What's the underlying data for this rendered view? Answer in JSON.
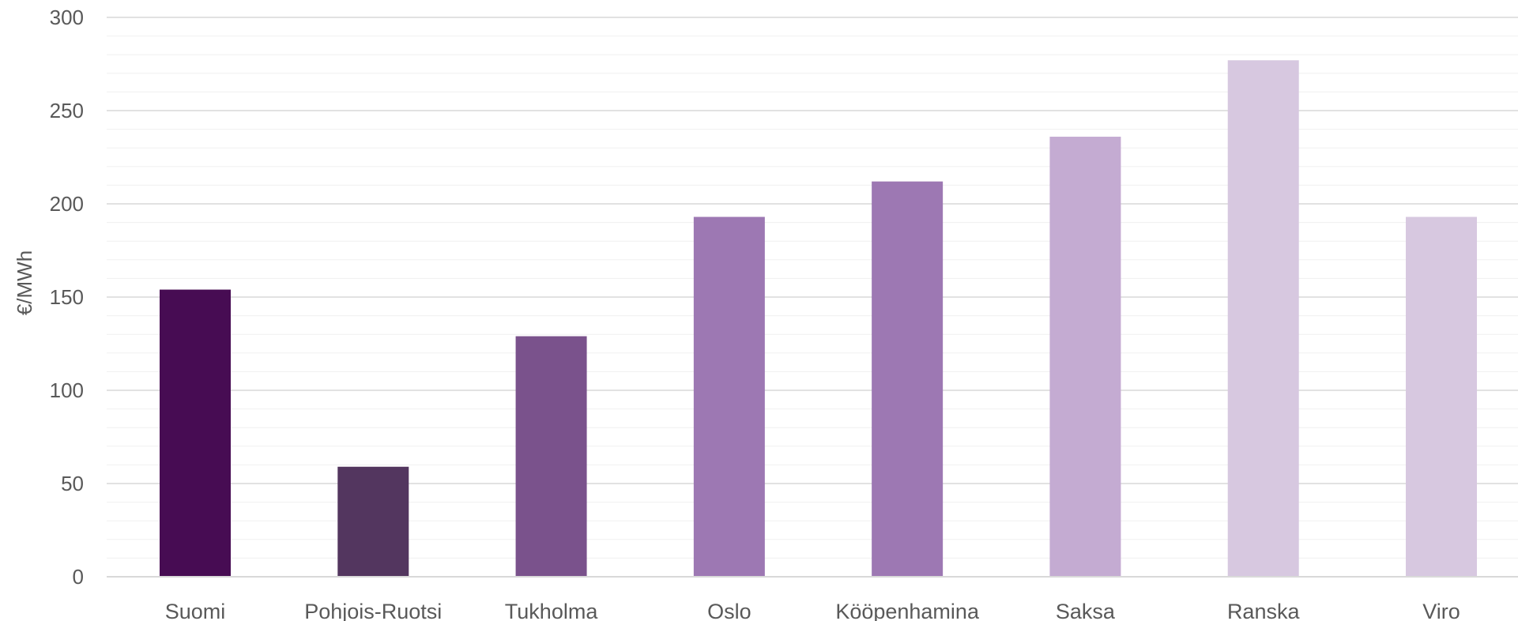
{
  "chart_data": {
    "type": "bar",
    "title": "",
    "xlabel": "",
    "ylabel": "€/MWh",
    "ylim": [
      0,
      300
    ],
    "yticks": [
      0,
      50,
      100,
      150,
      200,
      250,
      300
    ],
    "grid": true,
    "legend": "none",
    "categories": [
      "Suomi",
      "Pohjois-Ruotsi",
      "Tukholma",
      "Oslo",
      "Kööpenhamina",
      "Saksa",
      "Ranska",
      "Viro"
    ],
    "values": [
      154,
      59,
      129,
      193,
      212,
      236,
      277,
      193
    ],
    "colors": [
      "#470c53",
      "#53365f",
      "#7a528c",
      "#9d78b3",
      "#9d78b3",
      "#c4abd2",
      "#d7c8e0",
      "#d7c8e0"
    ]
  }
}
